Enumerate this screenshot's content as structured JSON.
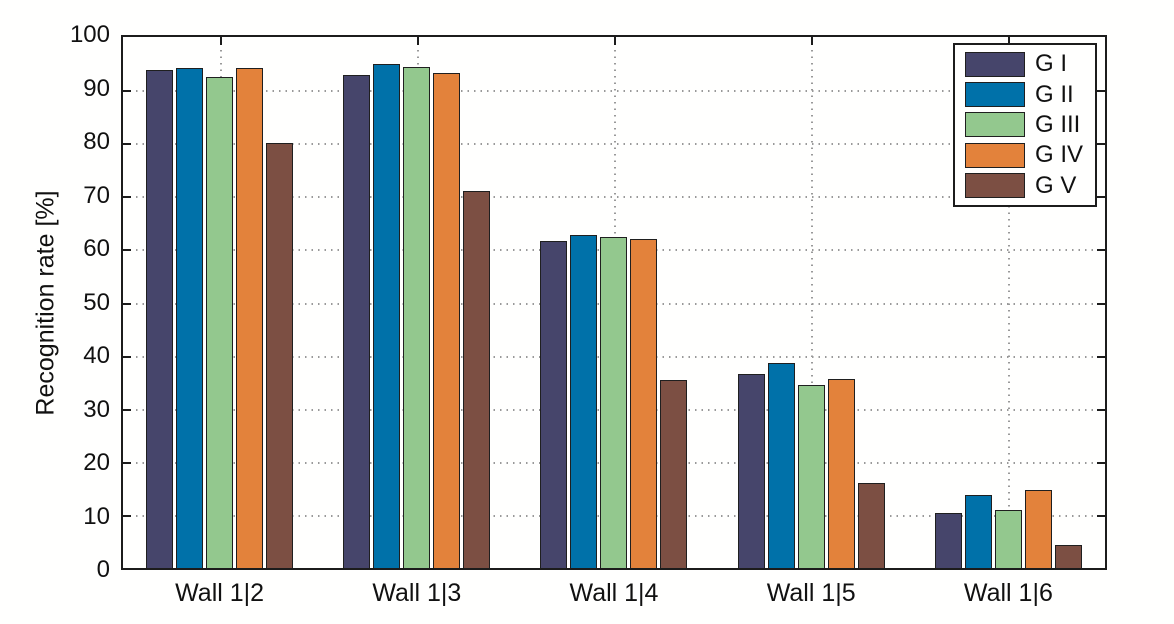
{
  "chart_data": {
    "type": "bar",
    "title": "",
    "xlabel": "",
    "ylabel": "Recognition rate [%]",
    "categories": [
      "Wall 1|2",
      "Wall 1|3",
      "Wall 1|4",
      "Wall 1|5",
      "Wall 1|6"
    ],
    "series": [
      {
        "name": "G I",
        "color": "#46456B",
        "values": [
          93.8,
          92.9,
          61.6,
          36.6,
          10.4
        ]
      },
      {
        "name": "G II",
        "color": "#0071A9",
        "values": [
          94.1,
          95.0,
          62.7,
          38.6,
          13.8
        ]
      },
      {
        "name": "G III",
        "color": "#93C88E",
        "values": [
          92.5,
          94.3,
          62.4,
          34.5,
          10.9
        ]
      },
      {
        "name": "G IV",
        "color": "#E3823B",
        "values": [
          94.1,
          93.2,
          62.0,
          35.6,
          14.6
        ]
      },
      {
        "name": "G V",
        "color": "#7C4F43",
        "values": [
          80.1,
          71.0,
          35.4,
          16.1,
          4.3
        ]
      }
    ],
    "ylim": [
      0,
      100
    ],
    "yticks": [
      0,
      10,
      20,
      30,
      40,
      50,
      60,
      70,
      80,
      90,
      100
    ],
    "grid": true,
    "grid_style": "dotted",
    "grid_color": "#999999",
    "axis_color": "#1c1c1c",
    "legend_position": "top-right"
  }
}
